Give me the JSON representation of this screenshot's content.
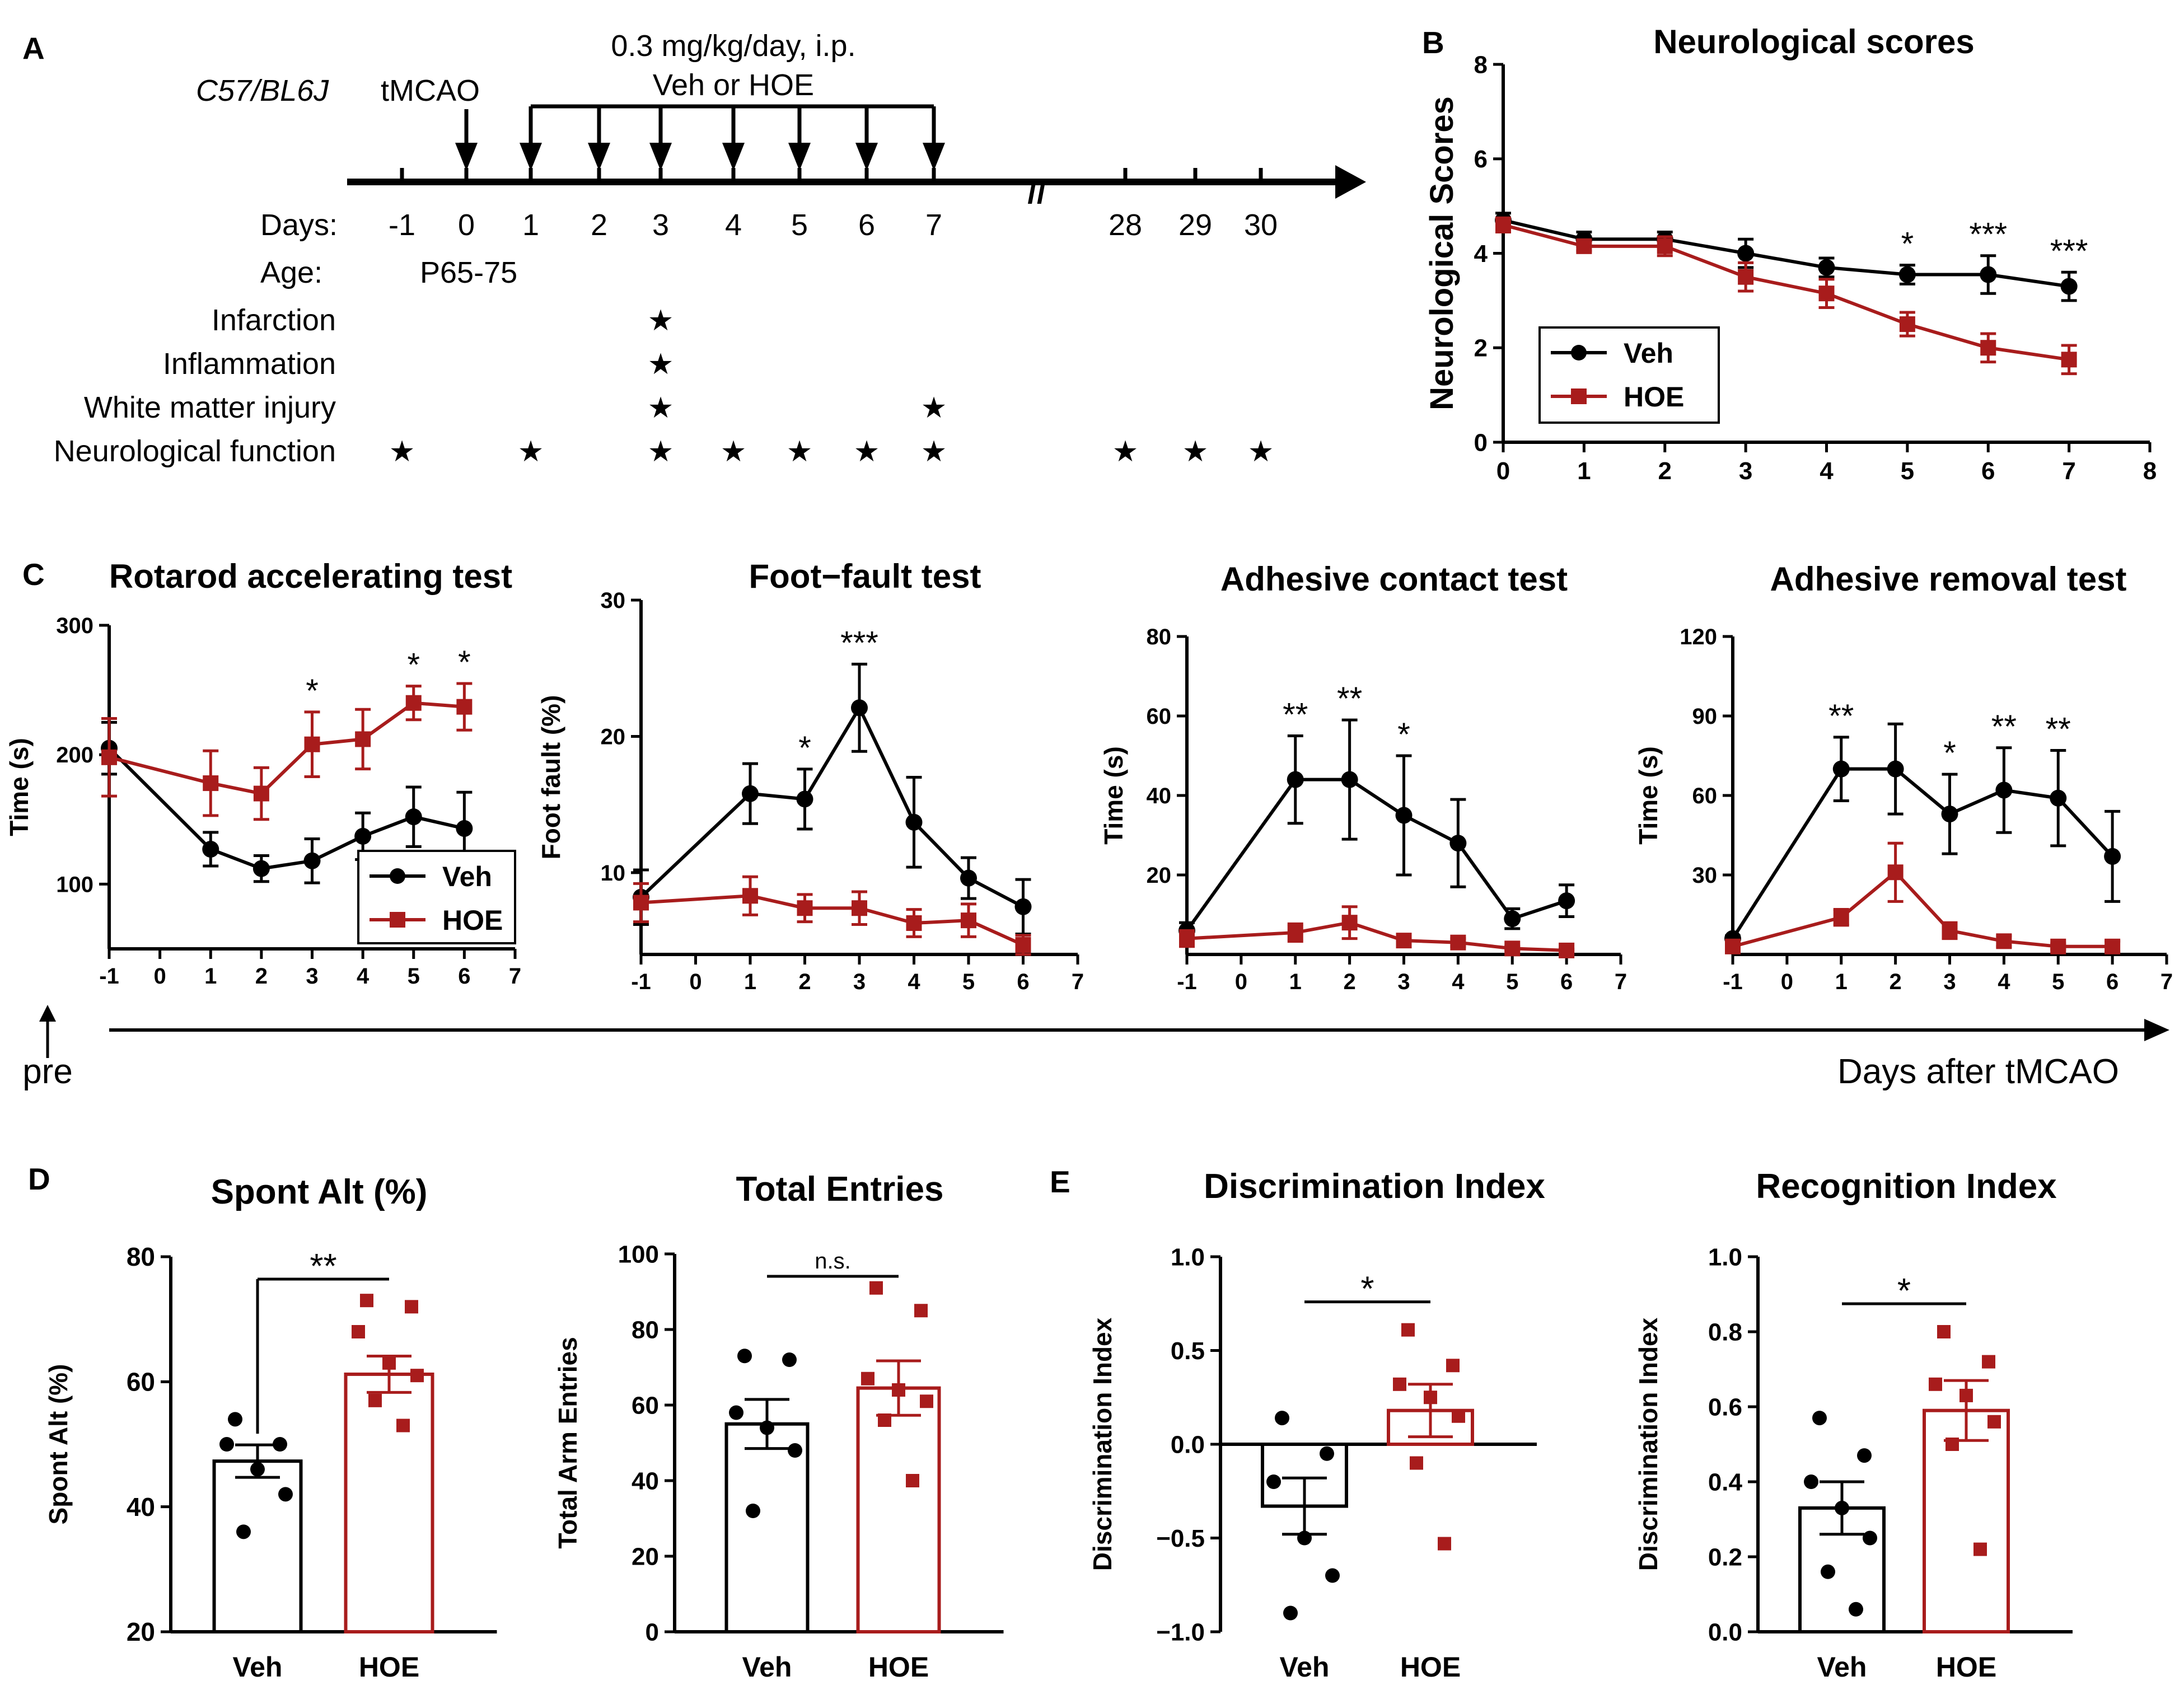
{
  "colors": {
    "veh": "#000000",
    "hoe": "#a81c1c",
    "text": "#000000"
  },
  "panel_a": {
    "label": "A",
    "strain": "C57/BL6J",
    "surgery": "tMCAO",
    "dose": "0.3 mg/kg/day, i.p.",
    "treatment": "Veh or HOE",
    "days_label": "Days:",
    "age_label": "Age:",
    "age_value": "P65-75",
    "days": [
      "-1",
      "0",
      "1",
      "2",
      "3",
      "4",
      "5",
      "6",
      "7",
      "28",
      "29",
      "30"
    ],
    "break_mark": "//",
    "assessments": [
      {
        "label": "Infarction",
        "days": [
          "3"
        ]
      },
      {
        "label": "Inflammation",
        "days": [
          "3"
        ]
      },
      {
        "label": "White matter injury",
        "days": [
          "3",
          "7"
        ]
      },
      {
        "label": "Neurological function",
        "days": [
          "-1",
          "1",
          "3",
          "4",
          "5",
          "6",
          "7",
          "28",
          "29",
          "30"
        ]
      }
    ],
    "star_glyph": "★"
  },
  "panel_c_label": "C",
  "panel_d_label": "D",
  "panel_e_label": "E",
  "pre_label": "pre",
  "xaxis_caption": "Days after tMCAO",
  "chart_data": [
    {
      "id": "neuro",
      "panel": "B",
      "type": "line",
      "title": "Neurological scores",
      "ylabel": "Neurological Scores",
      "xlabel": "",
      "xlim": [
        0,
        8
      ],
      "ylim": [
        0,
        8
      ],
      "xticks": [
        0,
        1,
        2,
        3,
        4,
        5,
        6,
        7,
        8
      ],
      "yticks": [
        0,
        2,
        4,
        6,
        8
      ],
      "legend": "bottom-left",
      "series": [
        {
          "name": "Veh",
          "x": [
            0,
            1,
            2,
            3,
            4,
            5,
            6,
            7
          ],
          "y": [
            4.7,
            4.3,
            4.3,
            4.0,
            3.7,
            3.55,
            3.55,
            3.3
          ],
          "err": [
            0.15,
            0.15,
            0.15,
            0.3,
            0.2,
            0.2,
            0.4,
            0.3
          ]
        },
        {
          "name": "HOE",
          "x": [
            0,
            1,
            2,
            3,
            4,
            5,
            6,
            7
          ],
          "y": [
            4.6,
            4.15,
            4.15,
            3.5,
            3.15,
            2.5,
            2.0,
            1.75
          ],
          "err": [
            0.15,
            0.1,
            0.2,
            0.3,
            0.3,
            0.25,
            0.3,
            0.3
          ]
        }
      ],
      "annotations": [
        {
          "x": 5,
          "text": "*"
        },
        {
          "x": 6,
          "text": "***"
        },
        {
          "x": 7,
          "text": "***"
        }
      ]
    },
    {
      "id": "rotarod",
      "panel": "C",
      "type": "line",
      "title": "Rotarod accelerating test",
      "ylabel": "Time (s)",
      "xlabel": "",
      "xlim": [
        -1,
        7
      ],
      "ylim": [
        50,
        300
      ],
      "xticks": [
        -1,
        0,
        1,
        2,
        3,
        4,
        5,
        6,
        7
      ],
      "yticks": [
        100,
        200,
        300
      ],
      "legend": "bottom-right",
      "series": [
        {
          "name": "Veh",
          "x": [
            -1,
            1,
            2,
            3,
            4,
            5,
            6
          ],
          "y": [
            205,
            127,
            112,
            118,
            137,
            152,
            143
          ],
          "err": [
            20,
            13,
            10,
            17,
            18,
            23,
            28
          ]
        },
        {
          "name": "HOE",
          "x": [
            -1,
            1,
            2,
            3,
            4,
            5,
            6
          ],
          "y": [
            198,
            178,
            170,
            208,
            212,
            240,
            237
          ],
          "err": [
            30,
            25,
            20,
            25,
            23,
            13,
            18
          ]
        }
      ],
      "annotations": [
        {
          "x": 3,
          "text": "*"
        },
        {
          "x": 5,
          "text": "*"
        },
        {
          "x": 6,
          "text": "*"
        }
      ]
    },
    {
      "id": "footfault",
      "panel": "C",
      "type": "line",
      "title": "Foot−fault test",
      "ylabel": "Foot fault (%)",
      "xlabel": "",
      "xlim": [
        -1,
        7
      ],
      "ylim": [
        4,
        30
      ],
      "xticks": [
        -1,
        0,
        1,
        2,
        3,
        4,
        5,
        6,
        7
      ],
      "yticks": [
        10,
        20,
        30
      ],
      "series": [
        {
          "name": "Veh",
          "x": [
            -1,
            1,
            2,
            3,
            4,
            5,
            6
          ],
          "y": [
            8.2,
            15.8,
            15.4,
            22.1,
            13.7,
            9.6,
            7.5
          ],
          "err": [
            2,
            2.2,
            2.2,
            3.2,
            3.3,
            1.5,
            2
          ]
        },
        {
          "name": "HOE",
          "x": [
            -1,
            1,
            2,
            3,
            4,
            5,
            6
          ],
          "y": [
            7.8,
            8.3,
            7.4,
            7.4,
            6.3,
            6.5,
            4.7
          ],
          "err": [
            1.4,
            1.4,
            1,
            1.2,
            1,
            1.2,
            0.7
          ]
        }
      ],
      "annotations": [
        {
          "x": 2,
          "text": "*"
        },
        {
          "x": 3,
          "text": "***"
        }
      ]
    },
    {
      "id": "adh_contact",
      "panel": "C",
      "type": "line",
      "title": "Adhesive contact test",
      "ylabel": "Time (s)",
      "xlabel": "",
      "xlim": [
        -1,
        7
      ],
      "ylim": [
        0,
        80
      ],
      "xticks": [
        -1,
        0,
        1,
        2,
        3,
        4,
        5,
        6,
        7
      ],
      "yticks": [
        20,
        40,
        60,
        80
      ],
      "series": [
        {
          "name": "Veh",
          "x": [
            -1,
            1,
            2,
            3,
            4,
            5,
            6
          ],
          "y": [
            6,
            44,
            44,
            35,
            28,
            9,
            13.5
          ],
          "err": [
            2,
            11,
            15,
            15,
            11,
            2.5,
            4
          ]
        },
        {
          "name": "HOE",
          "x": [
            -1,
            1,
            2,
            3,
            4,
            5,
            6
          ],
          "y": [
            4,
            5.5,
            8,
            3.5,
            3,
            1.5,
            1
          ],
          "err": [
            2,
            2.2,
            4,
            1.2,
            1,
            0.5,
            0.3
          ]
        }
      ],
      "annotations": [
        {
          "x": 1,
          "text": "**"
        },
        {
          "x": 2,
          "text": "**"
        },
        {
          "x": 3,
          "text": "*"
        }
      ]
    },
    {
      "id": "adh_removal",
      "panel": "C",
      "type": "line",
      "title": "Adhesive removal test",
      "ylabel": "Time (s)",
      "xlabel": "",
      "xlim": [
        -1,
        7
      ],
      "ylim": [
        0,
        120
      ],
      "xticks": [
        -1,
        0,
        1,
        2,
        3,
        4,
        5,
        6,
        7
      ],
      "yticks": [
        30,
        60,
        90,
        120
      ],
      "series": [
        {
          "name": "Veh",
          "x": [
            -1,
            1,
            2,
            3,
            4,
            5,
            6
          ],
          "y": [
            6,
            70,
            70,
            53,
            62,
            59,
            37
          ],
          "err": [
            1,
            12,
            17,
            15,
            16,
            18,
            17
          ]
        },
        {
          "name": "HOE",
          "x": [
            -1,
            1,
            2,
            3,
            4,
            5,
            6
          ],
          "y": [
            3,
            14,
            31,
            9,
            5,
            3,
            3
          ],
          "err": [
            1,
            3,
            11,
            3,
            2,
            1,
            2
          ]
        }
      ],
      "annotations": [
        {
          "x": 1,
          "text": "**"
        },
        {
          "x": 3,
          "text": "*"
        },
        {
          "x": 4,
          "text": "**"
        },
        {
          "x": 5,
          "text": "**"
        }
      ]
    },
    {
      "id": "spontalt",
      "panel": "D",
      "type": "bar",
      "title": "Spont Alt (%)",
      "ylabel": "Spont Alt (%)",
      "xlabel": "",
      "categories": [
        "Veh",
        "HOE"
      ],
      "ylim": [
        20,
        80
      ],
      "yticks": [
        20,
        40,
        60,
        80
      ],
      "means": [
        47.3,
        61.2
      ],
      "sem": [
        2.6,
        2.9
      ],
      "points": [
        [
          54,
          50,
          50,
          46,
          42,
          36
        ],
        [
          73,
          72,
          68,
          63,
          61,
          57,
          53
        ]
      ],
      "sig": "**"
    },
    {
      "id": "totalentries",
      "panel": "D",
      "type": "bar",
      "title": "Total Entries",
      "ylabel": "Total Arm Entries",
      "xlabel": "",
      "categories": [
        "Veh",
        "HOE"
      ],
      "ylim": [
        0,
        100
      ],
      "yticks": [
        0,
        20,
        40,
        60,
        80,
        100
      ],
      "means": [
        55,
        64.5
      ],
      "sem": [
        6.5,
        7.2
      ],
      "points": [
        [
          73,
          72,
          58,
          54,
          48,
          32
        ],
        [
          91,
          85,
          67,
          64,
          61,
          56,
          40
        ]
      ],
      "sig": "n.s."
    },
    {
      "id": "discrimination",
      "panel": "E",
      "type": "bar",
      "title": "Discrimination Index",
      "ylabel": "Discrimination Index",
      "xlabel": "",
      "categories": [
        "Veh",
        "HOE"
      ],
      "ylim": [
        -1.0,
        1.0
      ],
      "yticks": [
        -1.0,
        -0.5,
        0.0,
        0.5,
        1.0
      ],
      "ytick_labels": [
        "−1.0",
        "−0.5",
        "0.0",
        "0.5",
        "1.0"
      ],
      "means": [
        -0.33,
        0.18
      ],
      "sem": [
        0.15,
        0.14
      ],
      "points": [
        [
          0.14,
          -0.05,
          -0.2,
          -0.5,
          -0.7,
          -0.9
        ],
        [
          0.61,
          0.42,
          0.32,
          0.25,
          0.15,
          -0.1,
          -0.53
        ]
      ],
      "sig": "*"
    },
    {
      "id": "recognition",
      "panel": "E",
      "type": "bar",
      "title": "Recognition Index",
      "ylabel": "Discrimination Index",
      "xlabel": "",
      "categories": [
        "Veh",
        "HOE"
      ],
      "ylim": [
        0.0,
        1.0
      ],
      "yticks": [
        0.0,
        0.2,
        0.4,
        0.6,
        0.8,
        1.0
      ],
      "ytick_labels": [
        "0.0",
        "0.2",
        "0.4",
        "0.6",
        "0.8",
        "1.0"
      ],
      "means": [
        0.33,
        0.59
      ],
      "sem": [
        0.07,
        0.08
      ],
      "points": [
        [
          0.57,
          0.47,
          0.4,
          0.33,
          0.25,
          0.16,
          0.06
        ],
        [
          0.8,
          0.72,
          0.66,
          0.63,
          0.56,
          0.5,
          0.22
        ]
      ],
      "sig": "*"
    }
  ]
}
